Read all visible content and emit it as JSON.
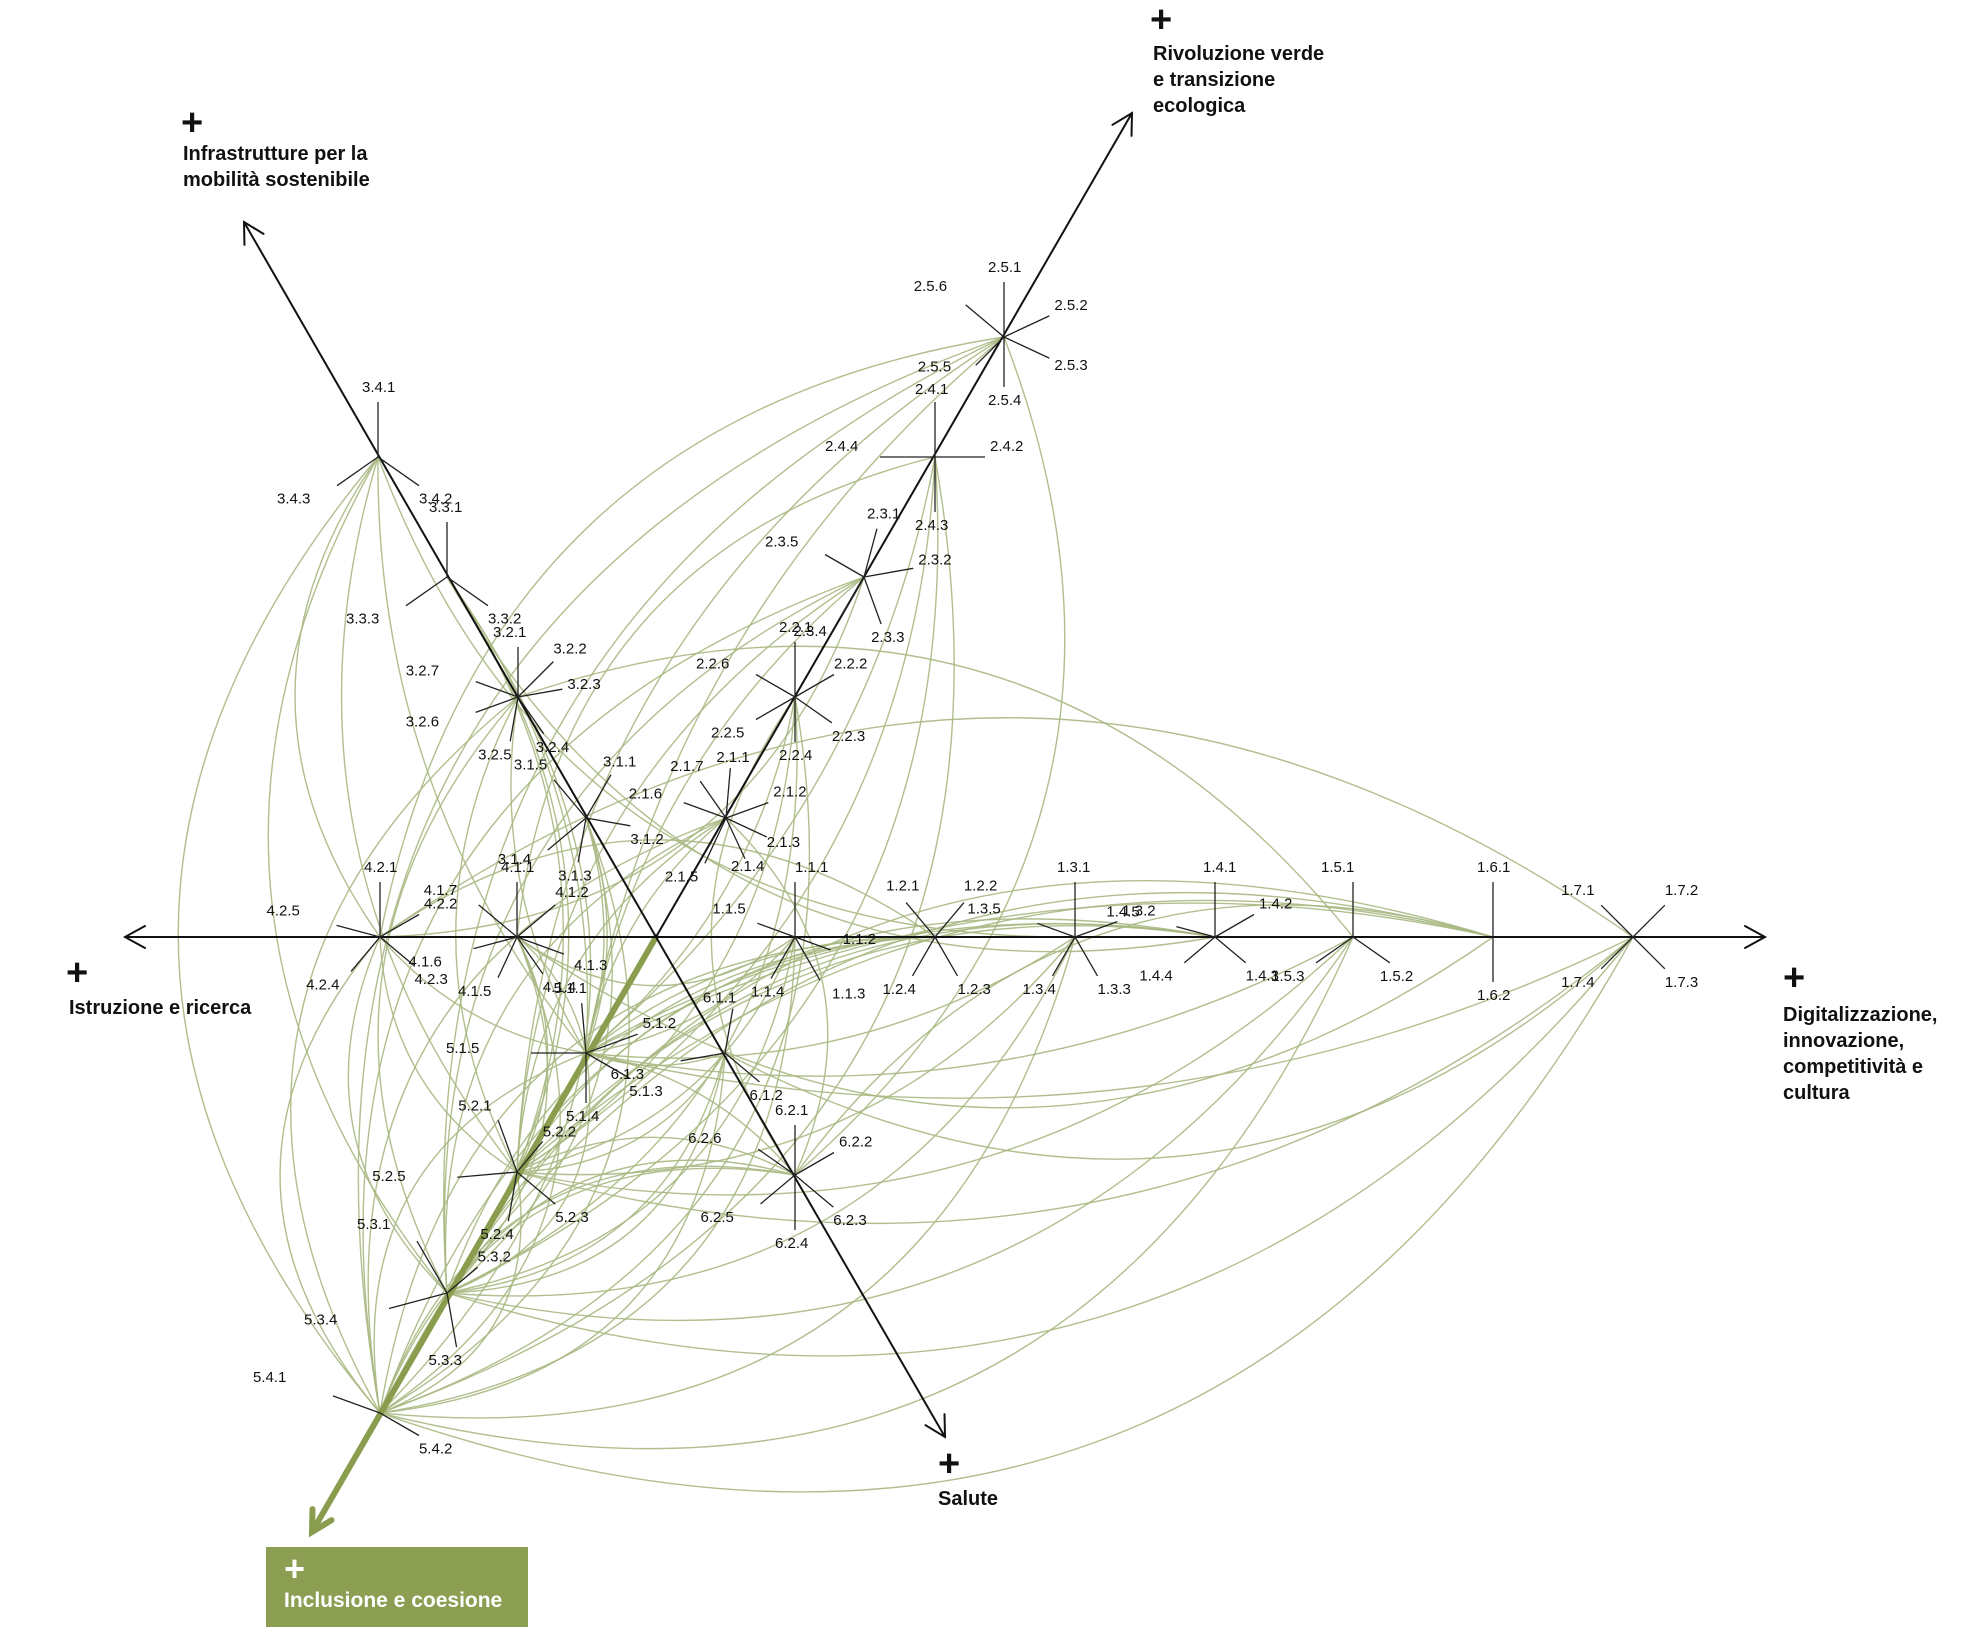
{
  "axes": {
    "digit": {
      "lines": [
        "Digitalizzazione,",
        "innovazione,",
        "competitività e",
        "cultura"
      ],
      "plus": "+"
    },
    "verde": {
      "lines": [
        "Rivoluzione verde",
        "e transizione",
        "ecologica"
      ],
      "plus": "+"
    },
    "infra": {
      "lines": [
        "Infrastrutture per la",
        "mobilità sostenibile"
      ],
      "plus": "+"
    },
    "istr": {
      "lines": [
        "Istruzione e ricerca"
      ],
      "plus": "+"
    },
    "salute": {
      "lines": [
        "Salute"
      ],
      "plus": "+"
    },
    "incl": {
      "lines": [
        "Inclusione e coesione"
      ],
      "plus": "+"
    }
  },
  "nodes": [
    {
      "id": "1.1",
      "labels": [
        "1.1.1",
        "1.1.2",
        "1.1.3",
        "1.1.4",
        "1.1.5"
      ]
    },
    {
      "id": "1.2",
      "labels": [
        "1.2.1",
        "1.2.2",
        "1.2.3",
        "1.2.4"
      ]
    },
    {
      "id": "1.3",
      "labels": [
        "1.3.1",
        "1.3.2",
        "1.3.3",
        "1.3.4",
        "1.3.5"
      ]
    },
    {
      "id": "1.4",
      "labels": [
        "1.4.1",
        "1.4.2",
        "1.4.3",
        "1.4.4",
        "1.4.5"
      ]
    },
    {
      "id": "1.5",
      "labels": [
        "1.5.1",
        "1.5.2",
        "1.5.3"
      ]
    },
    {
      "id": "1.6",
      "labels": [
        "1.6.1",
        "1.6.2"
      ]
    },
    {
      "id": "1.7",
      "labels": [
        "1.7.1",
        "1.7.2",
        "1.7.3",
        "1.7.4"
      ]
    },
    {
      "id": "2.1",
      "labels": [
        "2.1.1",
        "2.1.2",
        "2.1.3",
        "2.1.4",
        "2.1.5",
        "2.1.6",
        "2.1.7"
      ]
    },
    {
      "id": "2.2",
      "labels": [
        "2.2.1",
        "2.2.2",
        "2.2.3",
        "2.2.4",
        "2.2.5",
        "2.2.6"
      ]
    },
    {
      "id": "2.3",
      "labels": [
        "2.3.1",
        "2.3.2",
        "2.3.3",
        "2.3.4",
        "2.3.5"
      ]
    },
    {
      "id": "2.4",
      "labels": [
        "2.4.1",
        "2.4.2",
        "2.4.3",
        "2.4.4"
      ]
    },
    {
      "id": "2.5",
      "labels": [
        "2.5.1",
        "2.5.2",
        "2.5.3",
        "2.5.4",
        "2.5.5",
        "2.5.6"
      ]
    },
    {
      "id": "3.1",
      "labels": [
        "3.1.1",
        "3.1.2",
        "3.1.3",
        "3.1.4",
        "3.1.5"
      ]
    },
    {
      "id": "3.2",
      "labels": [
        "3.2.1",
        "3.2.2",
        "3.2.3",
        "3.2.4",
        "3.2.5",
        "3.2.6",
        "3.2.7"
      ]
    },
    {
      "id": "3.3",
      "labels": [
        "3.3.1",
        "3.3.2",
        "3.3.3"
      ]
    },
    {
      "id": "3.4",
      "labels": [
        "3.4.1",
        "3.4.2",
        "3.4.3"
      ]
    },
    {
      "id": "4.1",
      "labels": [
        "4.1.1",
        "4.1.2",
        "4.1.3",
        "4.1.4",
        "4.1.5",
        "4.1.6",
        "4.1.7"
      ]
    },
    {
      "id": "4.2",
      "labels": [
        "4.2.1",
        "4.2.2",
        "4.2.3",
        "4.2.4",
        "4.2.5"
      ]
    },
    {
      "id": "5.1",
      "labels": [
        "5.1.1",
        "5.1.2",
        "5.1.3",
        "5.1.4",
        "5.1.5"
      ]
    },
    {
      "id": "5.2",
      "labels": [
        "5.2.1",
        "5.2.2",
        "5.2.3",
        "5.2.4",
        "5.2.5"
      ]
    },
    {
      "id": "5.3",
      "labels": [
        "5.3.1",
        "5.3.2",
        "5.3.3",
        "5.3.4"
      ]
    },
    {
      "id": "5.4",
      "labels": [
        "5.4.1",
        "5.4.2"
      ]
    },
    {
      "id": "6.1",
      "labels": [
        "6.1.1",
        "6.1.2",
        "6.1.3"
      ]
    },
    {
      "id": "6.2",
      "labels": [
        "6.2.1",
        "6.2.2",
        "6.2.3",
        "6.2.4",
        "6.2.5",
        "6.2.6"
      ]
    }
  ]
}
